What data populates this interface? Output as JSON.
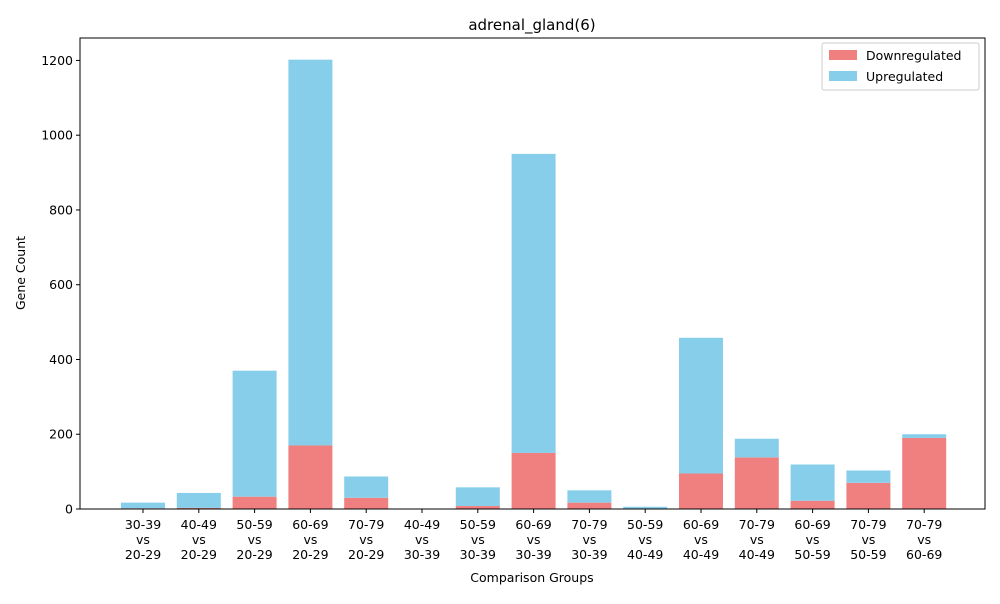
{
  "chart_data": {
    "type": "bar",
    "stacked": true,
    "title": "adrenal_gland(6)",
    "xlabel": "Comparison Groups",
    "ylabel": "Gene Count",
    "ylim": [
      0,
      1260
    ],
    "yticks": [
      0,
      200,
      400,
      600,
      800,
      1000,
      1200
    ],
    "grid": false,
    "legend_position": "top-right",
    "categories": [
      [
        "30-39",
        "vs",
        "20-29"
      ],
      [
        "40-49",
        "vs",
        "20-29"
      ],
      [
        "50-59",
        "vs",
        "20-29"
      ],
      [
        "60-69",
        "vs",
        "20-29"
      ],
      [
        "70-79",
        "vs",
        "20-29"
      ],
      [
        "40-49",
        "vs",
        "30-39"
      ],
      [
        "50-59",
        "vs",
        "30-39"
      ],
      [
        "60-69",
        "vs",
        "30-39"
      ],
      [
        "70-79",
        "vs",
        "30-39"
      ],
      [
        "50-59",
        "vs",
        "40-49"
      ],
      [
        "60-69",
        "vs",
        "40-49"
      ],
      [
        "70-79",
        "vs",
        "40-49"
      ],
      [
        "60-69",
        "vs",
        "50-59"
      ],
      [
        "70-79",
        "vs",
        "50-59"
      ],
      [
        "70-79",
        "vs",
        "60-69"
      ]
    ],
    "series": [
      {
        "name": "Downregulated",
        "color": "#f08080",
        "values": [
          2,
          3,
          33,
          170,
          30,
          0,
          8,
          150,
          17,
          1,
          95,
          138,
          22,
          70,
          190
        ]
      },
      {
        "name": "Upregulated",
        "color": "#87ceeb",
        "values": [
          15,
          40,
          337,
          1032,
          57,
          0,
          50,
          800,
          33,
          5,
          363,
          50,
          97,
          33,
          10
        ]
      }
    ]
  }
}
